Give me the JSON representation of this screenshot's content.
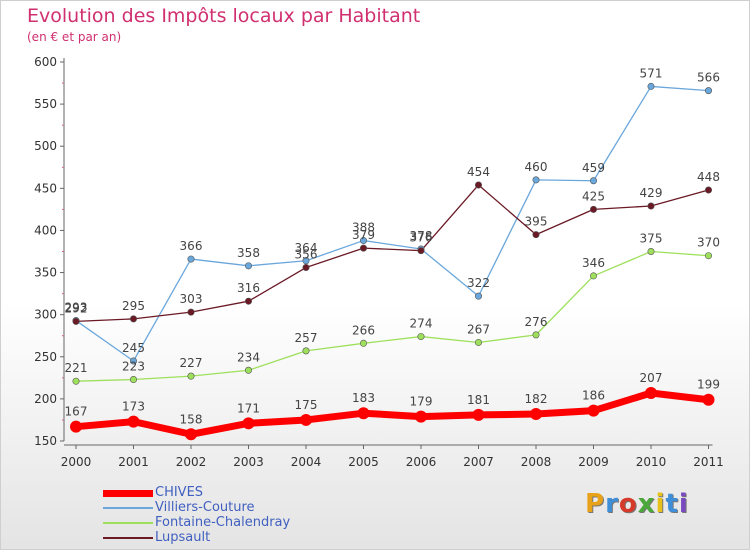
{
  "header": {
    "title": "Evolution des Impôts locaux par Habitant",
    "subtitle": "(en € et par an)"
  },
  "colors": {
    "title": "#d0306f",
    "chives": "#ff0000",
    "villiers": "#6aa7dc",
    "fontaine": "#9ee05c",
    "lupsault": "#6b1a25",
    "axis": "#666666"
  },
  "logo": {
    "letters": [
      "P",
      "r",
      "o",
      "x",
      "i",
      "t",
      "i"
    ],
    "colors": [
      "#e8a21a",
      "#3f8ed8",
      "#d63a2a",
      "#4aa83a",
      "#e8c01a",
      "#3f8ed8",
      "#7a4ac0"
    ]
  },
  "chart_data": {
    "type": "line",
    "title": "Evolution des Impôts locaux par Habitant",
    "subtitle": "(en € et par an)",
    "x": [
      "2000",
      "2001",
      "2002",
      "2003",
      "2004",
      "2005",
      "2006",
      "2007",
      "2008",
      "2009",
      "2010",
      "2011"
    ],
    "ylim": [
      150,
      600
    ],
    "yticks": [
      150,
      200,
      250,
      300,
      350,
      400,
      450,
      500,
      550,
      600
    ],
    "grid": false,
    "legend": "bottom-left",
    "series": [
      {
        "name": "CHIVES",
        "color": "#ff0000",
        "values": [
          167,
          173,
          158,
          171,
          175,
          183,
          179,
          181,
          182,
          186,
          207,
          199
        ]
      },
      {
        "name": "Villiers-Couture",
        "color": "#6aa7dc",
        "values": [
          293,
          245,
          366,
          358,
          364,
          388,
          378,
          322,
          460,
          459,
          571,
          566
        ]
      },
      {
        "name": "Fontaine-Chalendray",
        "color": "#9ee05c",
        "values": [
          221,
          223,
          227,
          234,
          257,
          266,
          274,
          267,
          276,
          346,
          375,
          370
        ]
      },
      {
        "name": "Lupsault",
        "color": "#6b1a25",
        "values": [
          292,
          295,
          303,
          316,
          356,
          379,
          376,
          454,
          395,
          425,
          429,
          448
        ]
      }
    ]
  }
}
